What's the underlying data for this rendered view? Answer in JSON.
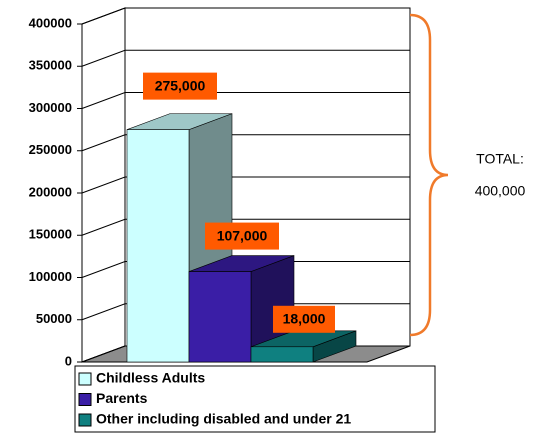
{
  "chart_data": {
    "type": "bar3d",
    "series": [
      {
        "name": "Childless Adults",
        "color": "#ccffff",
        "values": [
          275000
        ],
        "value_labels": [
          "275,000"
        ]
      },
      {
        "name": "Parents",
        "color": "#3a1ea6",
        "values": [
          107000
        ],
        "value_labels": [
          "107,000"
        ]
      },
      {
        "name": "Other including disabled and under 21",
        "color": "#0f8080",
        "values": [
          18000
        ],
        "value_labels": [
          "18,000"
        ]
      }
    ],
    "ylim": [
      0,
      400000
    ],
    "yticks": [
      0,
      50000,
      100000,
      150000,
      200000,
      250000,
      300000,
      350000,
      400000
    ],
    "grid": true,
    "label_color": "#ff5a00",
    "annotation": [
      "TOTAL:",
      "400,000"
    ]
  }
}
